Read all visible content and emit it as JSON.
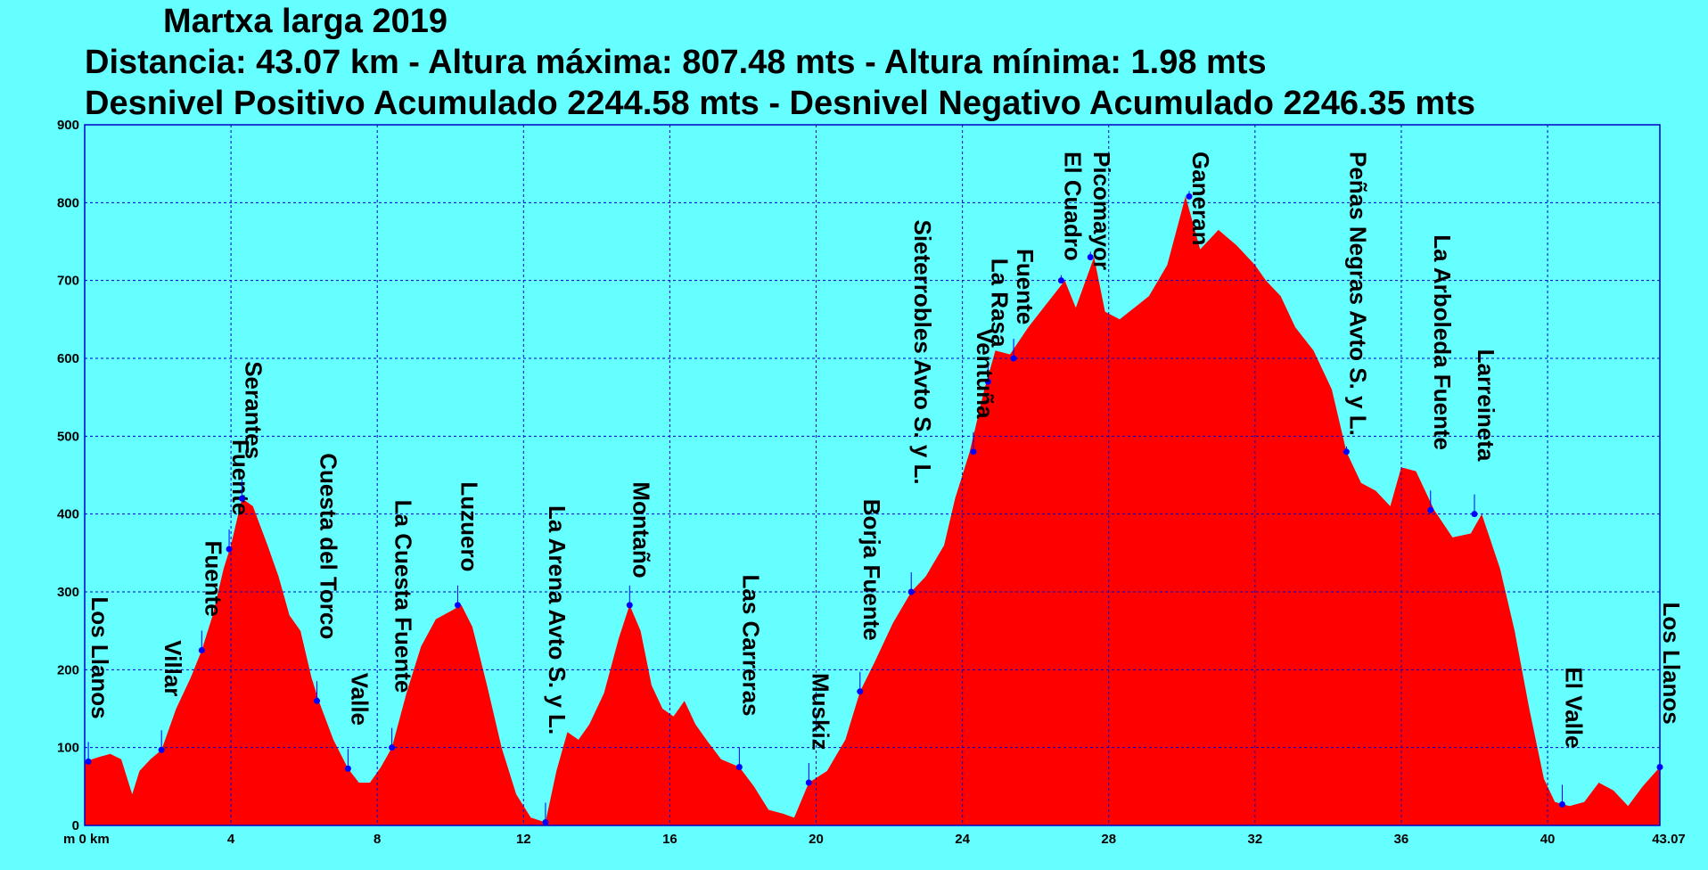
{
  "chart_data": {
    "type": "area",
    "title": "Martxa larga 2019",
    "subtitle_1": "Distancia: 43.07 km - Altura máxima: 807.48 mts - Altura mínima: 1.98 mts",
    "subtitle_2": "Desnivel Positivo Acumulado 2244.58 mts - Desnivel Negativo Acumulado 2246.35 mts",
    "x_axis_unit_label": "m 0 km",
    "x_tick_labels": [
      "4",
      "8",
      "12",
      "16",
      "20",
      "24",
      "28",
      "32",
      "36",
      "40",
      "43.07"
    ],
    "x_ticks": [
      4,
      8,
      12,
      16,
      20,
      24,
      28,
      32,
      36,
      40,
      43.07
    ],
    "y_tick_labels": [
      "0",
      "100",
      "200",
      "300",
      "400",
      "500",
      "600",
      "700",
      "800",
      "900"
    ],
    "y_ticks": [
      0,
      100,
      200,
      300,
      400,
      500,
      600,
      700,
      800,
      900
    ],
    "xlim": [
      0,
      43.07
    ],
    "ylim": [
      0,
      900
    ],
    "grid": true,
    "colors": {
      "fill": "#ff0000",
      "background": "#66ffff",
      "grid": "#0000cc",
      "marker": "#0000ff"
    },
    "profile": [
      [
        0,
        82
      ],
      [
        0.4,
        88
      ],
      [
        0.7,
        92
      ],
      [
        1.0,
        85
      ],
      [
        1.3,
        40
      ],
      [
        1.5,
        70
      ],
      [
        1.8,
        85
      ],
      [
        2.1,
        97
      ],
      [
        2.5,
        150
      ],
      [
        2.9,
        190
      ],
      [
        3.2,
        225
      ],
      [
        3.5,
        270
      ],
      [
        3.8,
        330
      ],
      [
        4.0,
        360
      ],
      [
        4.3,
        420
      ],
      [
        4.6,
        410
      ],
      [
        5.0,
        360
      ],
      [
        5.3,
        320
      ],
      [
        5.6,
        270
      ],
      [
        5.9,
        250
      ],
      [
        6.2,
        190
      ],
      [
        6.4,
        160
      ],
      [
        6.8,
        110
      ],
      [
        7.2,
        73
      ],
      [
        7.5,
        55
      ],
      [
        7.8,
        55
      ],
      [
        8.1,
        75
      ],
      [
        8.4,
        100
      ],
      [
        8.8,
        170
      ],
      [
        9.2,
        230
      ],
      [
        9.6,
        265
      ],
      [
        10.0,
        275
      ],
      [
        10.3,
        283
      ],
      [
        10.6,
        255
      ],
      [
        11.0,
        180
      ],
      [
        11.4,
        100
      ],
      [
        11.8,
        40
      ],
      [
        12.2,
        10
      ],
      [
        12.6,
        4
      ],
      [
        12.9,
        70
      ],
      [
        13.2,
        120
      ],
      [
        13.5,
        110
      ],
      [
        13.8,
        130
      ],
      [
        14.2,
        170
      ],
      [
        14.6,
        240
      ],
      [
        14.9,
        283
      ],
      [
        15.2,
        250
      ],
      [
        15.5,
        180
      ],
      [
        15.8,
        150
      ],
      [
        16.1,
        140
      ],
      [
        16.4,
        160
      ],
      [
        16.7,
        130
      ],
      [
        17.0,
        110
      ],
      [
        17.4,
        85
      ],
      [
        17.9,
        75
      ],
      [
        18.3,
        50
      ],
      [
        18.7,
        20
      ],
      [
        19.1,
        15
      ],
      [
        19.4,
        10
      ],
      [
        19.8,
        55
      ],
      [
        20.3,
        70
      ],
      [
        20.8,
        110
      ],
      [
        21.2,
        172
      ],
      [
        21.6,
        210
      ],
      [
        22.1,
        260
      ],
      [
        22.6,
        300
      ],
      [
        23.0,
        320
      ],
      [
        23.5,
        360
      ],
      [
        23.8,
        420
      ],
      [
        24.2,
        480
      ],
      [
        24.6,
        560
      ],
      [
        24.9,
        610
      ],
      [
        25.3,
        605
      ],
      [
        25.8,
        640
      ],
      [
        26.3,
        670
      ],
      [
        26.8,
        700
      ],
      [
        27.1,
        665
      ],
      [
        27.6,
        730
      ],
      [
        27.9,
        660
      ],
      [
        28.3,
        650
      ],
      [
        28.7,
        665
      ],
      [
        29.1,
        680
      ],
      [
        29.6,
        720
      ],
      [
        30.1,
        808
      ],
      [
        30.5,
        740
      ],
      [
        31.0,
        765
      ],
      [
        31.5,
        745
      ],
      [
        32.0,
        720
      ],
      [
        32.3,
        700
      ],
      [
        32.7,
        680
      ],
      [
        33.1,
        640
      ],
      [
        33.6,
        610
      ],
      [
        34.1,
        560
      ],
      [
        34.5,
        480
      ],
      [
        34.9,
        440
      ],
      [
        35.3,
        430
      ],
      [
        35.7,
        410
      ],
      [
        36.0,
        460
      ],
      [
        36.4,
        455
      ],
      [
        36.9,
        405
      ],
      [
        37.4,
        370
      ],
      [
        37.9,
        375
      ],
      [
        38.2,
        400
      ],
      [
        38.7,
        330
      ],
      [
        39.1,
        250
      ],
      [
        39.5,
        150
      ],
      [
        39.9,
        60
      ],
      [
        40.2,
        30
      ],
      [
        40.6,
        25
      ],
      [
        41.0,
        30
      ],
      [
        41.4,
        55
      ],
      [
        41.8,
        45
      ],
      [
        42.2,
        25
      ],
      [
        42.6,
        50
      ],
      [
        43.07,
        75
      ]
    ],
    "waypoints": [
      {
        "label": "Los Llanos",
        "x": 0.1,
        "y": 82
      },
      {
        "label": "Villar",
        "x": 2.1,
        "y": 97
      },
      {
        "label": "Fuente",
        "x": 3.2,
        "y": 225
      },
      {
        "label": "Fuente",
        "x": 3.95,
        "y": 355
      },
      {
        "label": "Serantes",
        "x": 4.3,
        "y": 420
      },
      {
        "label": "Cuesta del Torco",
        "x": 6.35,
        "y": 160
      },
      {
        "label": "Valle",
        "x": 7.2,
        "y": 73
      },
      {
        "label": "La Cuesta Fuente",
        "x": 8.4,
        "y": 100
      },
      {
        "label": "Luzuero",
        "x": 10.2,
        "y": 283
      },
      {
        "label": "La Arena Avto S. y L.",
        "x": 12.6,
        "y": 4
      },
      {
        "label": "Montaño",
        "x": 14.9,
        "y": 283
      },
      {
        "label": "Las Carreras",
        "x": 17.9,
        "y": 75
      },
      {
        "label": "Muskiz",
        "x": 19.8,
        "y": 55
      },
      {
        "label": "Borja Fuente",
        "x": 21.2,
        "y": 172
      },
      {
        "label": "Sieterrobles Avto S. y L.",
        "x": 22.6,
        "y": 300
      },
      {
        "label": "La Rasa",
        "x": 24.7,
        "y": 570
      },
      {
        "label": "Ventuña",
        "x": 24.3,
        "y": 480
      },
      {
        "label": "Fuente",
        "x": 25.4,
        "y": 600
      },
      {
        "label": "El Cuadro",
        "x": 26.7,
        "y": 700
      },
      {
        "label": "Picomayor",
        "x": 27.5,
        "y": 730
      },
      {
        "label": "Ganeran",
        "x": 30.2,
        "y": 808
      },
      {
        "label": "Peñas Negras Avto S. y L.",
        "x": 34.5,
        "y": 480
      },
      {
        "label": "La Arboleda Fuente",
        "x": 36.8,
        "y": 405
      },
      {
        "label": "Larreineta",
        "x": 38.0,
        "y": 400
      },
      {
        "label": "El Valle",
        "x": 40.4,
        "y": 27
      },
      {
        "label": "Los Llanos",
        "x": 43.07,
        "y": 75
      }
    ]
  }
}
